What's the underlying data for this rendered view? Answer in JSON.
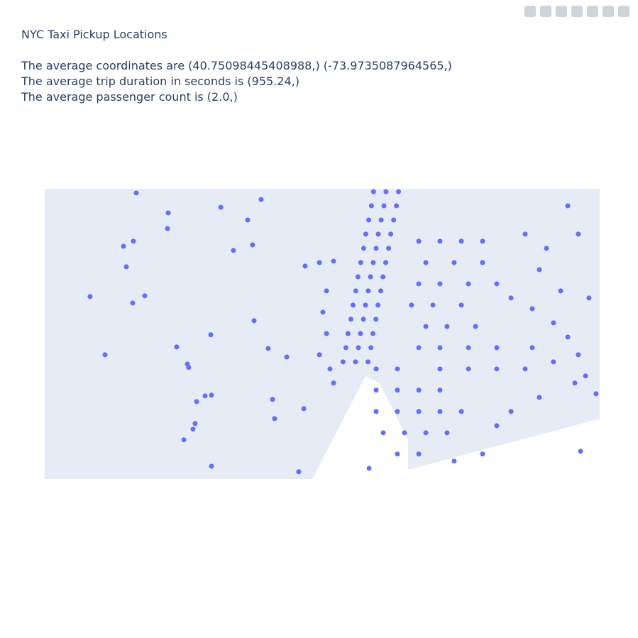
{
  "chart_data": {
    "type": "scattergeo",
    "title": "NYC Taxi Pickup Locations",
    "subtitle_lines": [
      "The average coordinates are (40.75098445408988,) (-73.9735087964565,)",
      "The average trip duration in seconds is (955.24,)",
      "The average passenger count is (2.0,)"
    ],
    "color": "#636efa",
    "xlim": [
      -74.2,
      -73.8
    ],
    "ylim": [
      40.64,
      40.8
    ],
    "x": [
      -74.134,
      -74.111,
      -74.1115,
      -74.0731,
      -74.044,
      -74.0537,
      -74.1432,
      -74.1361,
      -74.064,
      -74.0502,
      -74.1412,
      -74.1673,
      -74.1279,
      -74.1366,
      -74.0491,
      -74.0803,
      -74.1049,
      -74.1565,
      -74.0972,
      -74.0962,
      -74.0389,
      -74.0256,
      -74.0844,
      -74.0798,
      -74.0905,
      -74.0358,
      -74.0916,
      -74.0931,
      -74.0997,
      -74.0798,
      -74.0343,
      -74.0133,
      -74.0169,
      -74.0123,
      -74.002,
      -73.9918,
      -73.9969,
      -73.9995,
      -73.9969,
      -74.002,
      -73.9944,
      -73.9918,
      -73.963,
      -73.954,
      -73.945,
      -73.9645,
      -73.9555,
      -73.9465,
      -73.9665,
      -73.9575,
      -73.9485,
      -73.9686,
      -73.9596,
      -73.9506,
      -73.9701,
      -73.9611,
      -73.9521,
      -73.9722,
      -73.9632,
      -73.9542,
      -73.9742,
      -73.9652,
      -73.9562,
      -73.9758,
      -73.9668,
      -73.9578,
      -73.9778,
      -73.9688,
      -73.9598,
      -73.9793,
      -73.9703,
      -73.9613,
      -73.9814,
      -73.9724,
      -73.9634,
      -73.9829,
      -73.9739,
      -73.9649,
      -73.985,
      -73.976,
      -73.967,
      -73.9611,
      -73.9458,
      -73.9611,
      -73.9458,
      -73.9304,
      -73.9151,
      -73.9611,
      -73.9458,
      -73.9304,
      -73.9151,
      -73.8997,
      -73.956,
      -73.9407,
      -73.9253,
      -73.91,
      -73.9458,
      -73.9304,
      -73.9662,
      -73.9049,
      -73.8844,
      -73.9304,
      -73.9151,
      -73.8997,
      -73.8844,
      -73.9253,
      -73.9049,
      -73.8844,
      -73.9304,
      -73.9151,
      -73.8946,
      -73.8742,
      -73.9356,
      -73.9202,
      -73.8997,
      -73.9253,
      -73.91,
      -73.8895,
      -73.9304,
      -73.9151,
      -73.8946,
      -73.8742,
      -73.9151,
      -73.8946,
      -73.8742,
      -73.8537,
      -73.8639,
      -73.8486,
      -73.8333,
      -73.823,
      -73.8154,
      -73.8102,
      -73.8026,
      -73.8537,
      -73.8384,
      -73.823,
      -73.8154,
      -73.8435,
      -73.8281,
      -73.8077,
      -73.8486,
      -73.8333,
      -73.8179,
      -73.8138,
      -73.8742,
      -73.8639,
      -73.8435
    ],
    "y": [
      40.7977,
      40.7867,
      40.7781,
      40.7898,
      40.7941,
      40.7828,
      40.7683,
      40.7711,
      40.766,
      40.7691,
      40.757,
      40.7406,
      40.741,
      40.737,
      40.7273,
      40.7195,
      40.7128,
      40.7085,
      40.7034,
      40.7015,
      40.712,
      40.7073,
      40.6858,
      40.6862,
      40.6827,
      40.6839,
      40.6706,
      40.6675,
      40.6616,
      40.6471,
      40.6733,
      40.6788,
      40.644,
      40.7574,
      40.7593,
      40.7601,
      40.7437,
      40.732,
      40.7202,
      40.7085,
      40.7007,
      40.6929,
      40.7984,
      40.7984,
      40.7984,
      40.7906,
      40.7906,
      40.7906,
      40.7828,
      40.7828,
      40.7828,
      40.775,
      40.775,
      40.775,
      40.7672,
      40.7672,
      40.7672,
      40.7593,
      40.7593,
      40.7593,
      40.7515,
      40.7515,
      40.7515,
      40.7437,
      40.7437,
      40.7437,
      40.7359,
      40.7359,
      40.7359,
      40.7281,
      40.7281,
      40.7281,
      40.7202,
      40.7202,
      40.7202,
      40.7124,
      40.7124,
      40.7124,
      40.7046,
      40.7046,
      40.7046,
      40.7007,
      40.7007,
      40.689,
      40.689,
      40.689,
      40.689,
      40.6772,
      40.6772,
      40.6772,
      40.6772,
      40.6772,
      40.6655,
      40.6655,
      40.6655,
      40.6655,
      40.6538,
      40.6538,
      40.6459,
      40.6499,
      40.6538,
      40.7711,
      40.7711,
      40.7711,
      40.7711,
      40.7593,
      40.7593,
      40.7593,
      40.7476,
      40.7476,
      40.7476,
      40.7476,
      40.7359,
      40.7359,
      40.7359,
      40.7241,
      40.7241,
      40.7241,
      40.7124,
      40.7124,
      40.7124,
      40.7124,
      40.7007,
      40.7007,
      40.7007,
      40.7007,
      40.7398,
      40.7339,
      40.7261,
      40.7183,
      40.7085,
      40.6968,
      40.687,
      40.775,
      40.7672,
      40.7906,
      40.775,
      40.7554,
      40.7437,
      40.7398,
      40.7124,
      40.7046,
      40.6929,
      40.6553,
      40.6694,
      40.6772,
      40.685
    ]
  }
}
